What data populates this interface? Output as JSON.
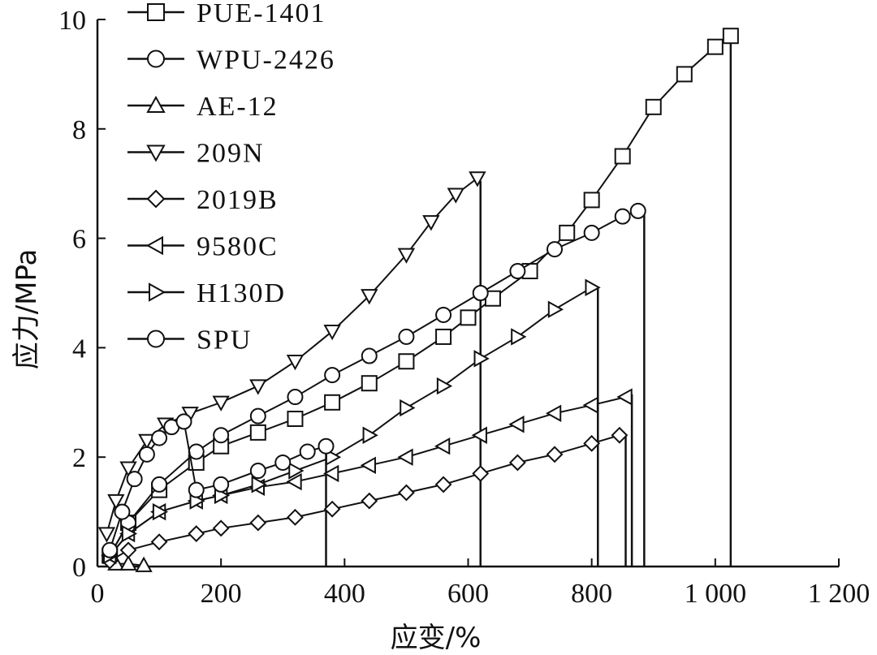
{
  "chart_data": {
    "type": "line",
    "title": "",
    "xlabel": "应变/%",
    "ylabel": "应力/MPa",
    "xlim": [
      0,
      1200
    ],
    "ylim": [
      0,
      10
    ],
    "xticks": [
      0,
      200,
      400,
      600,
      800,
      1000,
      1200
    ],
    "xtick_labels": [
      "0",
      "200",
      "400",
      "600",
      "800",
      "1 000",
      "1 200"
    ],
    "yticks": [
      0,
      2,
      4,
      6,
      8,
      10
    ],
    "ytick_labels": [
      "0",
      "2",
      "4",
      "6",
      "8",
      "10"
    ],
    "grid": false,
    "legend_position": "top-left",
    "series": [
      {
        "name": "PUE-1401",
        "marker": "square",
        "x": [
          20,
          50,
          100,
          160,
          200,
          260,
          320,
          380,
          440,
          500,
          560,
          600,
          640,
          700,
          760,
          800,
          850,
          900,
          950,
          1000,
          1025
        ],
        "y": [
          0.2,
          0.8,
          1.4,
          1.9,
          2.2,
          2.45,
          2.7,
          3.0,
          3.35,
          3.75,
          4.2,
          4.55,
          4.9,
          5.4,
          6.1,
          6.7,
          7.5,
          8.4,
          9.0,
          9.5,
          9.7
        ]
      },
      {
        "name": "WPU-2426",
        "marker": "circle",
        "x": [
          20,
          50,
          100,
          160,
          200,
          260,
          320,
          380,
          440,
          500,
          560,
          620,
          680,
          740,
          800,
          850,
          875
        ],
        "y": [
          0.2,
          0.8,
          1.5,
          2.1,
          2.4,
          2.75,
          3.1,
          3.5,
          3.85,
          4.2,
          4.6,
          5.0,
          5.4,
          5.8,
          6.1,
          6.4,
          6.5
        ]
      },
      {
        "name": "AE-12",
        "marker": "triangle-up",
        "x": [
          30,
          50,
          75
        ],
        "y": [
          0.05,
          0.05,
          0.02
        ]
      },
      {
        "name": "209N",
        "marker": "triangle-down",
        "x": [
          15,
          30,
          50,
          80,
          110,
          150,
          200,
          260,
          320,
          380,
          440,
          500,
          540,
          580,
          615
        ],
        "y": [
          0.6,
          1.2,
          1.8,
          2.3,
          2.6,
          2.8,
          3.0,
          3.3,
          3.75,
          4.3,
          4.95,
          5.7,
          6.3,
          6.8,
          7.1
        ]
      },
      {
        "name": "2019B",
        "marker": "diamond",
        "x": [
          20,
          50,
          100,
          160,
          200,
          260,
          320,
          380,
          440,
          500,
          560,
          620,
          680,
          740,
          800,
          845
        ],
        "y": [
          0.1,
          0.3,
          0.45,
          0.6,
          0.7,
          0.8,
          0.9,
          1.05,
          1.2,
          1.35,
          1.5,
          1.7,
          1.9,
          2.05,
          2.25,
          2.4
        ]
      },
      {
        "name": "9580C",
        "marker": "triangle-left",
        "x": [
          20,
          50,
          100,
          160,
          200,
          260,
          320,
          380,
          440,
          500,
          560,
          620,
          680,
          740,
          800,
          855
        ],
        "y": [
          0.2,
          0.6,
          1.0,
          1.2,
          1.3,
          1.45,
          1.55,
          1.7,
          1.85,
          2.0,
          2.2,
          2.4,
          2.6,
          2.8,
          2.95,
          3.1
        ]
      },
      {
        "name": "H130D",
        "marker": "triangle-right",
        "x": [
          20,
          50,
          100,
          160,
          200,
          260,
          320,
          380,
          440,
          500,
          560,
          620,
          680,
          740,
          800
        ],
        "y": [
          0.2,
          0.6,
          1.0,
          1.2,
          1.3,
          1.5,
          1.75,
          2.0,
          2.4,
          2.9,
          3.3,
          3.8,
          4.2,
          4.7,
          5.1
        ]
      },
      {
        "name": "SPU",
        "marker": "circle",
        "x": [
          20,
          40,
          60,
          80,
          100,
          120,
          140,
          160,
          200,
          260,
          300,
          340,
          370
        ],
        "y": [
          0.3,
          1.0,
          1.6,
          2.05,
          2.35,
          2.55,
          2.65,
          1.4,
          1.5,
          1.75,
          1.9,
          2.1,
          2.2
        ]
      }
    ],
    "break_lines": [
      {
        "series": "PUE-1401",
        "x": 1025,
        "y": 9.7
      },
      {
        "series": "WPU-2426",
        "x": 885,
        "y": 6.55
      },
      {
        "series": "209N",
        "x": 620,
        "y": 7.05
      },
      {
        "series": "2019B",
        "x": 855,
        "y": 2.4
      },
      {
        "series": "9580C",
        "x": 865,
        "y": 3.15
      },
      {
        "series": "H130D",
        "x": 810,
        "y": 5.1
      },
      {
        "series": "SPU",
        "x": 370,
        "y": 2.2
      }
    ],
    "legend": {
      "entries": [
        "PUE-1401",
        "WPU-2426",
        "AE-12",
        "209N",
        "2019B",
        "9580C",
        "H130D",
        "SPU"
      ]
    }
  }
}
